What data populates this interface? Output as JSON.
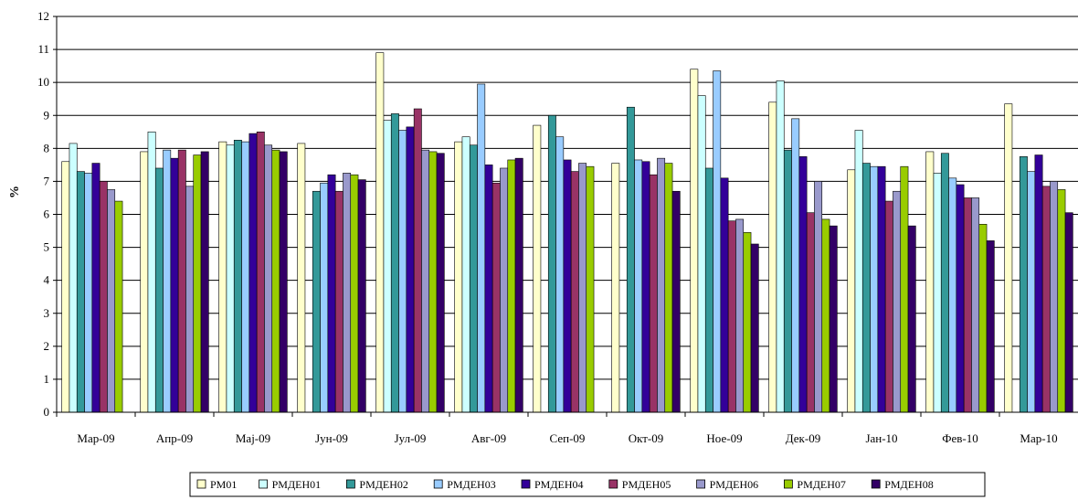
{
  "chart_data": {
    "type": "bar",
    "ylabel": "%",
    "ylim": [
      0,
      12
    ],
    "yticks": [
      0,
      1,
      2,
      3,
      4,
      5,
      6,
      7,
      8,
      9,
      10,
      11,
      12
    ],
    "grid": true,
    "legend_position": "bottom",
    "categories": [
      "Мар-09",
      "Апр-09",
      "Мај-09",
      "Јун-09",
      "Јул-09",
      "Авг-09",
      "Сеп-09",
      "Окт-09",
      "Ное-09",
      "Дек-09",
      "Јан-10",
      "Фев-10",
      "Мар-10"
    ],
    "series": [
      {
        "name": "РМ01",
        "color": "#ffffcc",
        "values": [
          7.6,
          7.9,
          8.2,
          8.15,
          10.9,
          8.2,
          8.7,
          7.55,
          10.4,
          9.4,
          7.35,
          7.9,
          9.35
        ]
      },
      {
        "name": "РМДЕН01",
        "color": "#ccffff",
        "values": [
          8.15,
          8.5,
          8.1,
          null,
          8.85,
          8.35,
          null,
          null,
          9.6,
          10.05,
          8.55,
          7.25,
          null
        ]
      },
      {
        "name": "РМДЕН02",
        "color": "#339999",
        "values": [
          7.3,
          7.4,
          8.25,
          6.7,
          9.05,
          8.1,
          9.0,
          9.25,
          7.4,
          7.95,
          7.55,
          7.85,
          7.75
        ]
      },
      {
        "name": "РМДЕН03",
        "color": "#99ccff",
        "values": [
          7.25,
          7.95,
          8.2,
          6.95,
          8.55,
          9.95,
          8.35,
          7.65,
          10.35,
          8.9,
          7.45,
          7.1,
          7.3
        ]
      },
      {
        "name": "РМДЕН04",
        "color": "#330099",
        "values": [
          7.55,
          7.7,
          8.45,
          7.2,
          8.65,
          7.5,
          7.65,
          7.6,
          7.1,
          7.75,
          7.45,
          6.9,
          7.8
        ]
      },
      {
        "name": "РМДЕН05",
        "color": "#993366",
        "values": [
          7.0,
          7.95,
          8.5,
          6.7,
          9.2,
          6.95,
          7.3,
          7.2,
          5.8,
          6.05,
          6.4,
          6.5,
          6.85
        ]
      },
      {
        "name": "РМДЕН06",
        "color": "#9999cc",
        "values": [
          6.75,
          6.85,
          8.1,
          7.25,
          7.95,
          7.4,
          7.55,
          7.7,
          5.85,
          7.0,
          6.7,
          6.5,
          7.0
        ]
      },
      {
        "name": "РМДЕН07",
        "color": "#99cc00",
        "values": [
          6.4,
          7.8,
          7.95,
          7.2,
          7.9,
          7.65,
          7.45,
          7.55,
          5.45,
          5.85,
          7.45,
          5.7,
          6.75
        ]
      },
      {
        "name": "РМДЕН08",
        "color": "#330066",
        "values": [
          null,
          7.9,
          7.9,
          7.05,
          7.85,
          7.7,
          null,
          6.7,
          5.1,
          5.65,
          5.65,
          5.2,
          6.05
        ]
      }
    ]
  }
}
